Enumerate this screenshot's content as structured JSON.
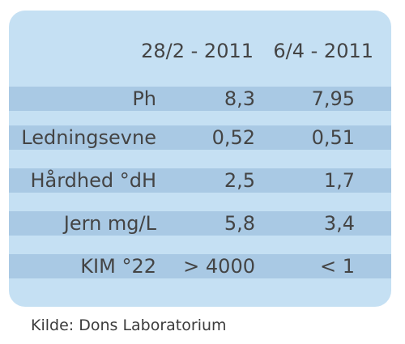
{
  "table": {
    "headers": [
      "28/2 - 2011",
      "6/4 - 2011"
    ],
    "rows": [
      {
        "label": "Ph",
        "values": [
          "8,3",
          "7,95"
        ]
      },
      {
        "label": "Ledningsevne",
        "values": [
          "0,52",
          "0,51"
        ]
      },
      {
        "label": "Hårdhed °dH",
        "values": [
          "2,5",
          "1,7"
        ]
      },
      {
        "label": "Jern mg/L",
        "values": [
          "5,8",
          "3,4"
        ]
      },
      {
        "label": "KIM °22",
        "values": [
          "> 4000",
          "< 1"
        ]
      }
    ]
  },
  "source": "Kilde: Dons Laboratorium",
  "colors": {
    "card_background": "#c5e0f3",
    "row_band": "#a9c9e4",
    "text": "#444444"
  }
}
